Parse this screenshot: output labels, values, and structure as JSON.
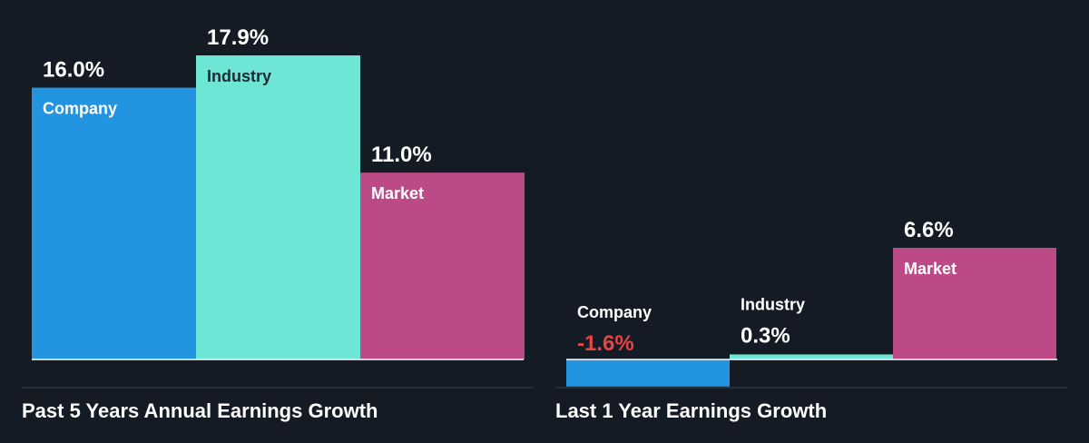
{
  "colors": {
    "background": "#151b24",
    "company": "#2394e0",
    "industry": "#6ee6d5",
    "market": "#bb4a87",
    "negative_value": "#e94444",
    "baseline": "#ffffff",
    "divider": "#3a414b"
  },
  "chart_data": [
    {
      "type": "bar",
      "title": "Past 5 Years Annual Earnings Growth",
      "categories": [
        "Company",
        "Industry",
        "Market"
      ],
      "values": [
        16.0,
        17.9,
        11.0
      ],
      "value_labels": [
        "16.0%",
        "17.9%",
        "11.0%"
      ],
      "unit": "%",
      "xlabel": "",
      "ylabel": "",
      "ylim": [
        0,
        17.9
      ],
      "grid": false,
      "legend": "none"
    },
    {
      "type": "bar",
      "title": "Last 1 Year Earnings Growth",
      "categories": [
        "Company",
        "Industry",
        "Market"
      ],
      "values": [
        -1.6,
        0.3,
        6.6
      ],
      "value_labels": [
        "-1.6%",
        "0.3%",
        "6.6%"
      ],
      "unit": "%",
      "xlabel": "",
      "ylabel": "",
      "ylim": [
        -1.6,
        6.6
      ],
      "grid": false,
      "legend": "none"
    }
  ]
}
